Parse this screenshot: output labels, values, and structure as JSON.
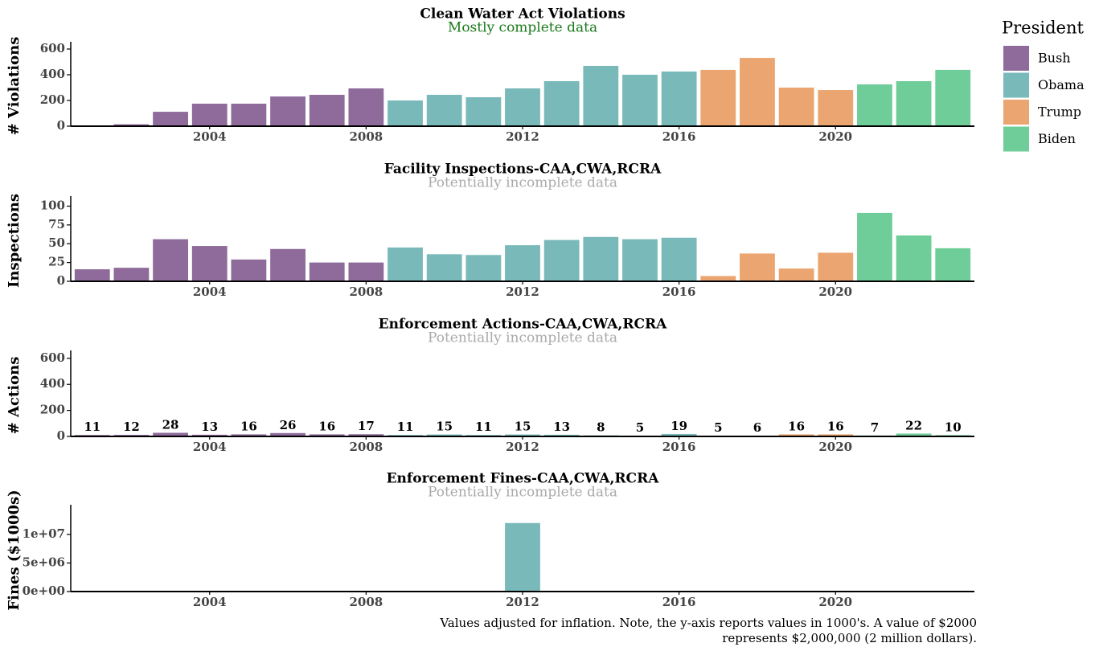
{
  "chart_data": [
    {
      "type": "bar",
      "title": "Clean Water Act Violations",
      "subtitle": "Mostly complete data",
      "ylabel": "# Violations",
      "x": [
        2001,
        2002,
        2003,
        2004,
        2005,
        2006,
        2007,
        2008,
        2009,
        2010,
        2011,
        2012,
        2013,
        2014,
        2015,
        2016,
        2017,
        2018,
        2019,
        2020,
        2021,
        2022,
        2023
      ],
      "values": [
        5,
        15,
        112,
        175,
        175,
        231,
        244,
        294,
        200,
        244,
        225,
        294,
        350,
        469,
        400,
        425,
        438,
        531,
        300,
        281,
        325,
        350,
        438
      ],
      "colors": [
        "#8e6b9a",
        "#8e6b9a",
        "#8e6b9a",
        "#8e6b9a",
        "#8e6b9a",
        "#8e6b9a",
        "#8e6b9a",
        "#8e6b9a",
        "#79b9b9",
        "#79b9b9",
        "#79b9b9",
        "#79b9b9",
        "#79b9b9",
        "#79b9b9",
        "#79b9b9",
        "#79b9b9",
        "#eba570",
        "#eba570",
        "#eba570",
        "#eba570",
        "#6ecd98",
        "#6ecd98",
        "#6ecd98"
      ],
      "xlim": [
        2000.45,
        2023.55
      ],
      "xticks": [
        2004,
        2008,
        2012,
        2016,
        2020
      ],
      "ylim": [
        0,
        625
      ],
      "yticks": [
        0,
        200,
        400,
        600
      ],
      "subtitle_color": "#1a7a1a"
    },
    {
      "type": "bar",
      "title": "Facility Inspections-CAA,CWA,RCRA",
      "subtitle": "Potentially incomplete data",
      "ylabel": "Inspections",
      "x": [
        2001,
        2002,
        2003,
        2004,
        2005,
        2006,
        2007,
        2008,
        2009,
        2010,
        2011,
        2012,
        2013,
        2014,
        2015,
        2016,
        2017,
        2018,
        2019,
        2020,
        2021,
        2022,
        2023
      ],
      "values": [
        16,
        18,
        56,
        47,
        29,
        43,
        25,
        25,
        45,
        36,
        35,
        48,
        55,
        59,
        56,
        58,
        7,
        37,
        17,
        38,
        91,
        61,
        44
      ],
      "colors": [
        "#8e6b9a",
        "#8e6b9a",
        "#8e6b9a",
        "#8e6b9a",
        "#8e6b9a",
        "#8e6b9a",
        "#8e6b9a",
        "#8e6b9a",
        "#79b9b9",
        "#79b9b9",
        "#79b9b9",
        "#79b9b9",
        "#79b9b9",
        "#79b9b9",
        "#79b9b9",
        "#79b9b9",
        "#eba570",
        "#eba570",
        "#eba570",
        "#eba570",
        "#6ecd98",
        "#6ecd98",
        "#6ecd98"
      ],
      "xlim": [
        2000.45,
        2023.55
      ],
      "xticks": [
        2004,
        2008,
        2012,
        2016,
        2020
      ],
      "ylim": [
        0,
        108
      ],
      "yticks": [
        0,
        25,
        50,
        75,
        100
      ],
      "subtitle_color": "#aaaaaa"
    },
    {
      "type": "bar",
      "title": "Enforcement Actions-CAA,CWA,RCRA",
      "subtitle": "Potentially incomplete data",
      "ylabel": "# Actions",
      "x": [
        2001,
        2002,
        2003,
        2004,
        2005,
        2006,
        2007,
        2008,
        2009,
        2010,
        2011,
        2012,
        2013,
        2014,
        2015,
        2016,
        2017,
        2018,
        2019,
        2020,
        2021,
        2022,
        2023
      ],
      "values": [
        11,
        12,
        28,
        13,
        16,
        26,
        16,
        17,
        11,
        15,
        11,
        15,
        13,
        8,
        5,
        19,
        5,
        6,
        16,
        16,
        7,
        22,
        10
      ],
      "colors": [
        "#8e6b9a",
        "#8e6b9a",
        "#8e6b9a",
        "#8e6b9a",
        "#8e6b9a",
        "#8e6b9a",
        "#8e6b9a",
        "#8e6b9a",
        "#79b9b9",
        "#79b9b9",
        "#79b9b9",
        "#79b9b9",
        "#79b9b9",
        "#79b9b9",
        "#79b9b9",
        "#79b9b9",
        "#eba570",
        "#eba570",
        "#eba570",
        "#eba570",
        "#6ecd98",
        "#6ecd98",
        "#6ecd98"
      ],
      "xlim": [
        2000.45,
        2023.55
      ],
      "xticks": [
        2004,
        2008,
        2012,
        2016,
        2020
      ],
      "ylim": [
        0,
        630
      ],
      "yticks": [
        0,
        200,
        400,
        600
      ],
      "data_labels": true,
      "subtitle_color": "#aaaaaa"
    },
    {
      "type": "bar",
      "title": "Enforcement Fines-CAA,CWA,RCRA",
      "subtitle": "Potentially incomplete data",
      "ylabel": "Fines ($1000s)",
      "x": [
        2001,
        2002,
        2003,
        2004,
        2005,
        2006,
        2007,
        2008,
        2009,
        2010,
        2011,
        2012,
        2013,
        2014,
        2015,
        2016,
        2017,
        2018,
        2019,
        2020,
        2021,
        2022,
        2023
      ],
      "values": [
        0,
        0,
        0,
        0,
        0,
        0,
        0,
        0,
        0,
        0,
        0,
        12000000,
        0,
        0,
        0,
        0,
        0,
        0,
        0,
        0,
        0,
        0,
        0
      ],
      "colors": [
        "#8e6b9a",
        "#8e6b9a",
        "#8e6b9a",
        "#8e6b9a",
        "#8e6b9a",
        "#8e6b9a",
        "#8e6b9a",
        "#8e6b9a",
        "#79b9b9",
        "#79b9b9",
        "#79b9b9",
        "#79b9b9",
        "#79b9b9",
        "#79b9b9",
        "#79b9b9",
        "#79b9b9",
        "#eba570",
        "#eba570",
        "#eba570",
        "#eba570",
        "#6ecd98",
        "#6ecd98",
        "#6ecd98"
      ],
      "xlim": [
        2000.45,
        2023.55
      ],
      "xticks": [
        2004,
        2008,
        2012,
        2016,
        2020
      ],
      "ylim": [
        0,
        14500000
      ],
      "yticks": [
        {
          "value": 0,
          "label": "0e+00"
        },
        {
          "value": 5000000,
          "label": "5e+06"
        },
        {
          "value": 10000000,
          "label": "1e+07"
        }
      ],
      "subtitle_color": "#aaaaaa"
    }
  ],
  "legend": {
    "title": "President",
    "names": [
      "Bush",
      "Obama",
      "Trump",
      "Biden"
    ],
    "colors": [
      "#8e6b9a",
      "#79b9b9",
      "#eba570",
      "#6ecd98"
    ]
  },
  "caption": [
    "Values adjusted for inflation. Note, the y-axis reports values in 1000's. A value of $2000",
    "represents $2,000,000 (2 million dollars)."
  ]
}
